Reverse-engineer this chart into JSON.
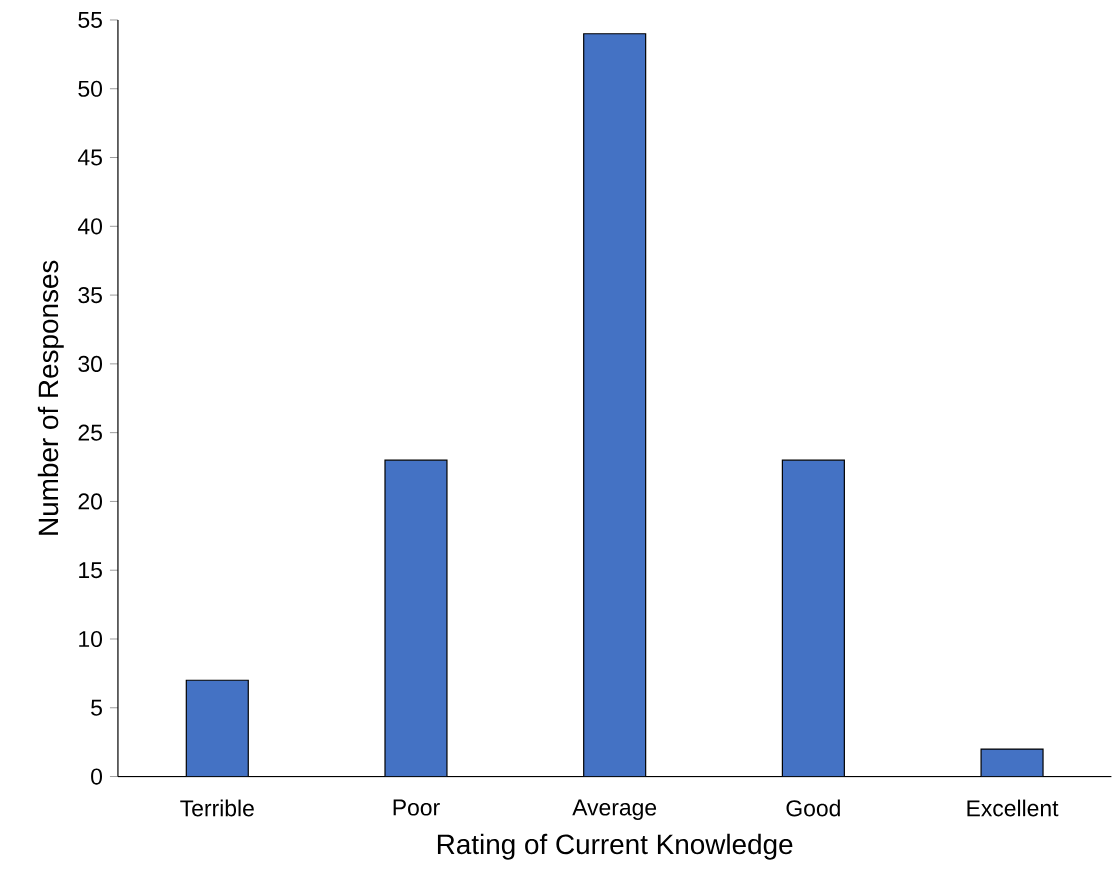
{
  "chart_data": {
    "type": "bar",
    "xlabel": "Rating of Current Knowledge",
    "ylabel": "Number of Responses",
    "categories": [
      "Terrible",
      "Poor",
      "Average",
      "Good",
      "Excellent"
    ],
    "values": [
      7,
      23,
      54,
      23,
      2
    ],
    "color": "#4472c4",
    "ylim": [
      0,
      55
    ],
    "yticks": [
      0,
      5,
      10,
      15,
      20,
      25,
      30,
      35,
      40,
      45,
      50,
      55
    ]
  }
}
